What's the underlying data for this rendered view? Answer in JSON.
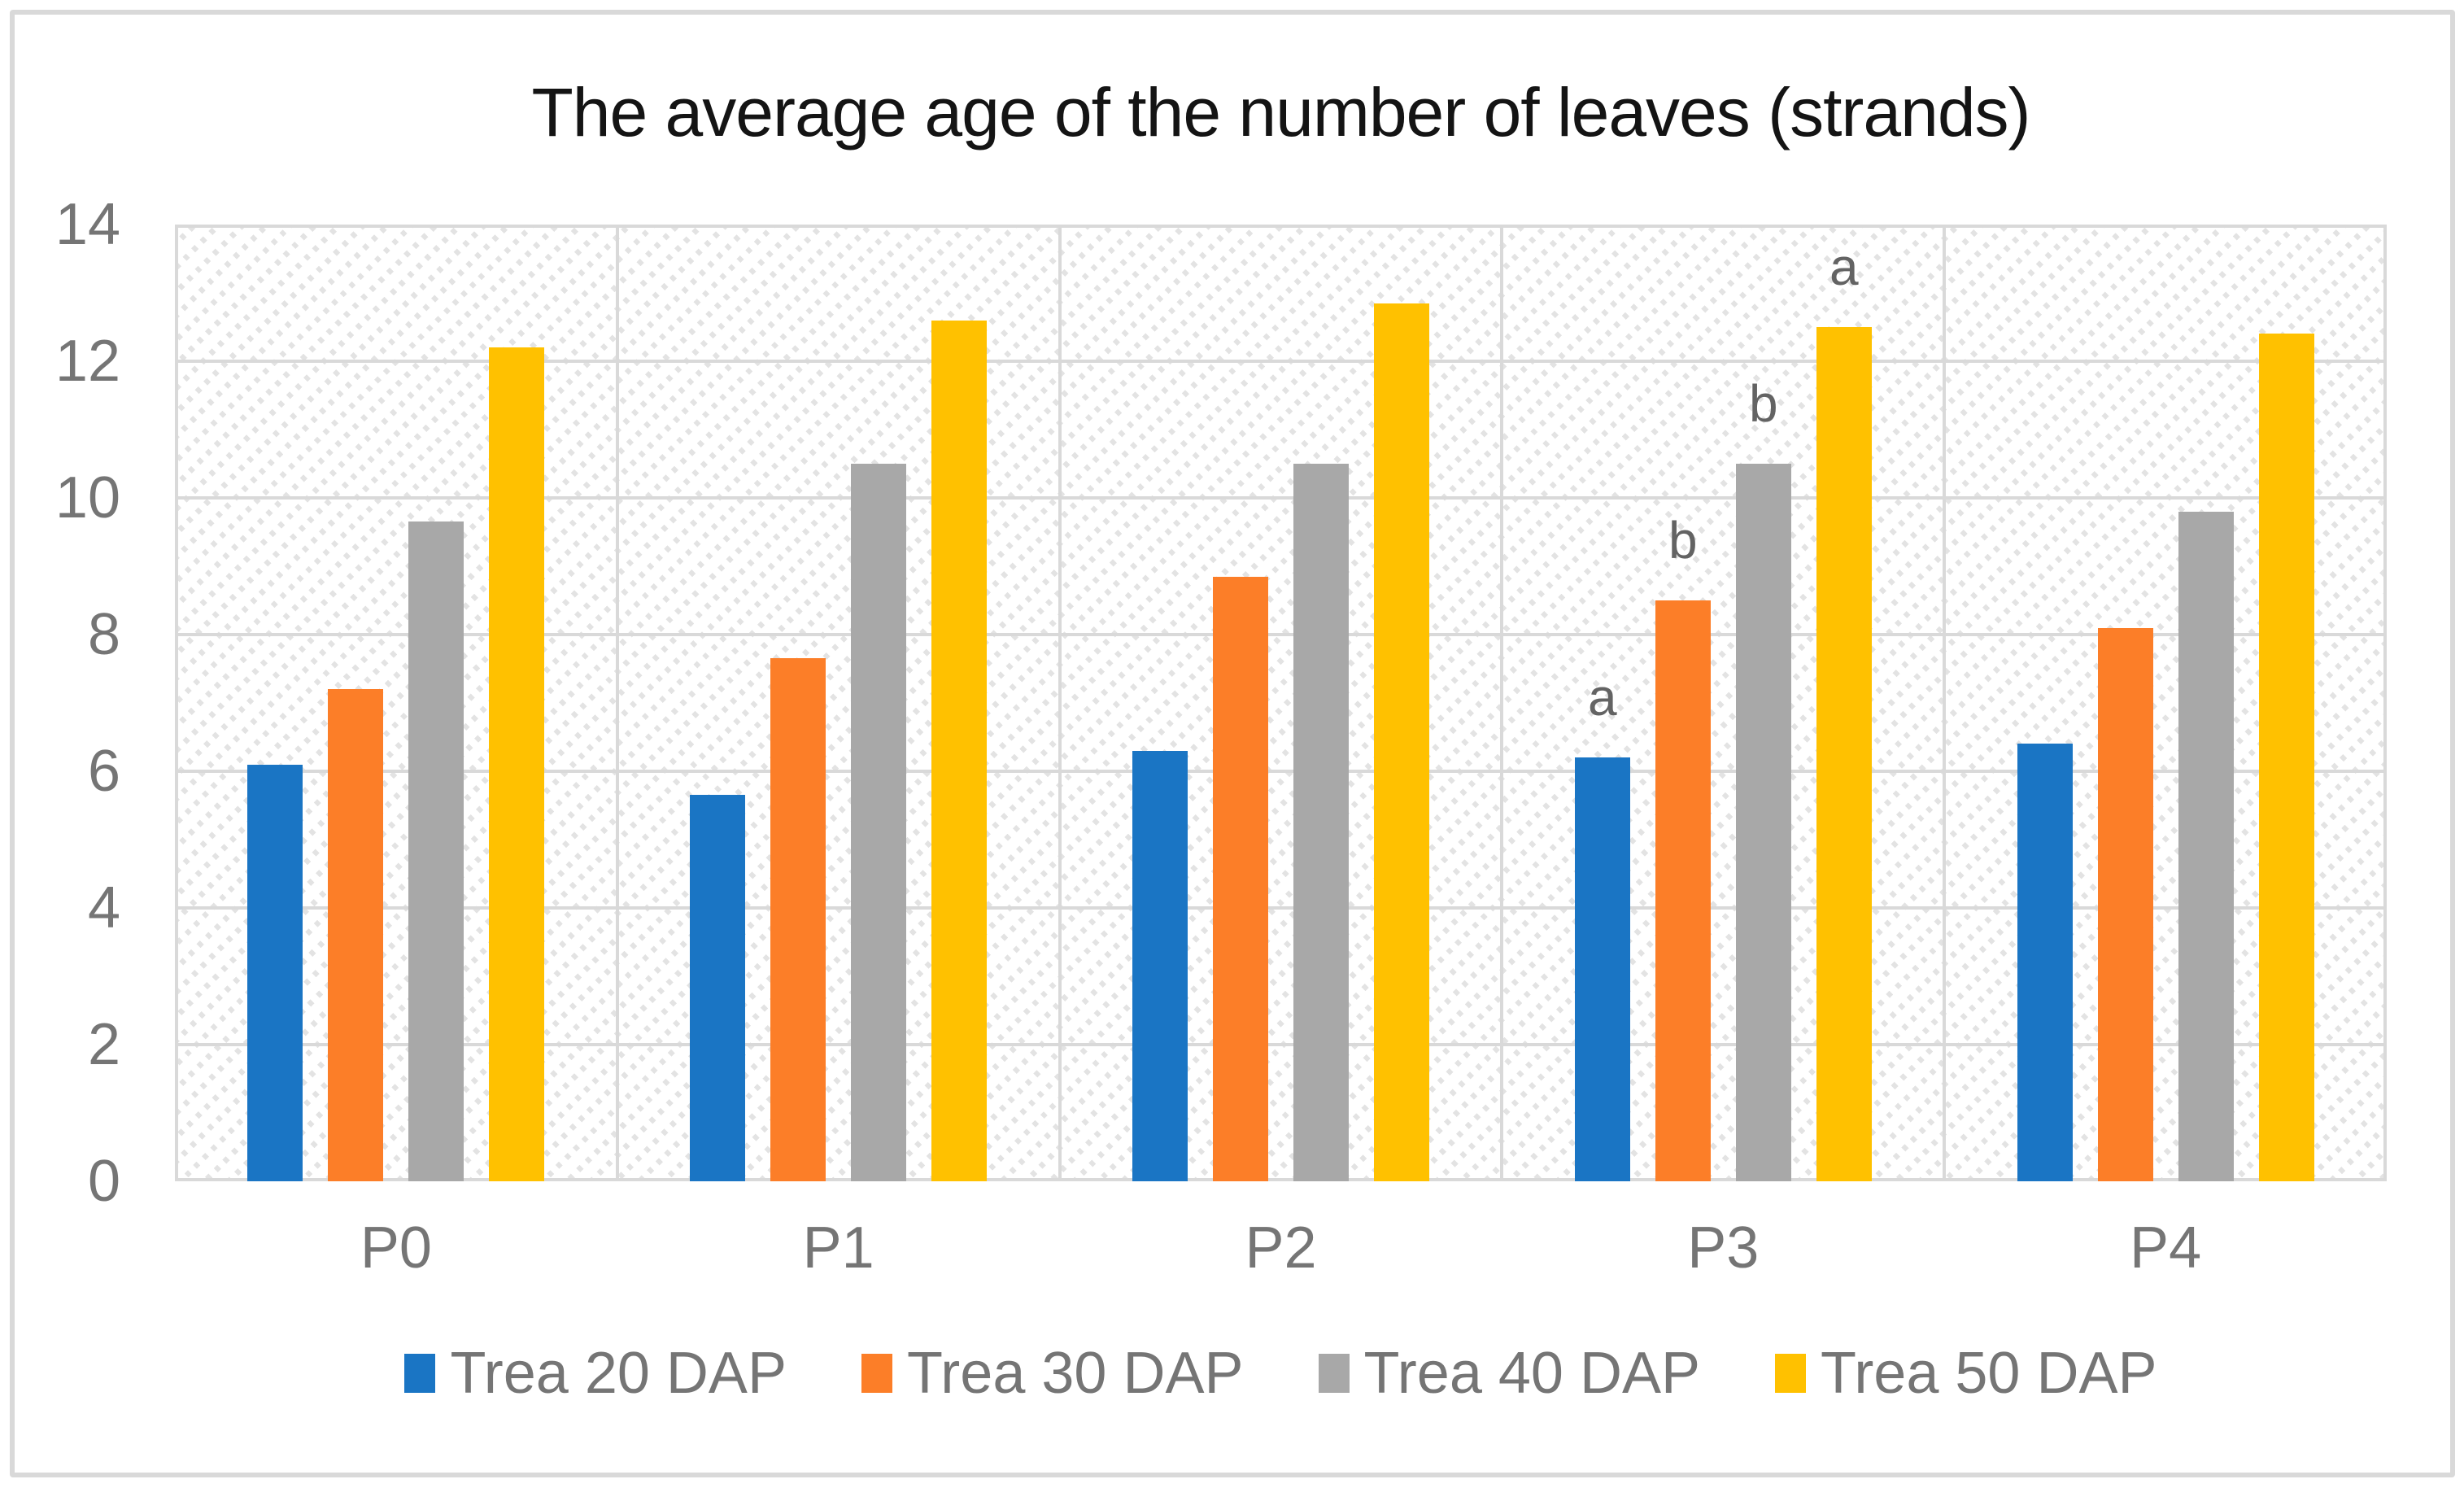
{
  "title": "The average age of the number of leaves (strands)",
  "chart_data": {
    "type": "bar",
    "title": "The average age of the number of leaves (strands)",
    "categories": [
      "P0",
      "P1",
      "P2",
      "P3",
      "P4"
    ],
    "series": [
      {
        "name": "Trea 20 DAP",
        "color": "#1A75C4",
        "values": [
          6.1,
          5.65,
          6.3,
          6.2,
          6.4
        ]
      },
      {
        "name": "Trea 30 DAP",
        "color": "#FC7E28",
        "values": [
          7.2,
          7.65,
          8.85,
          8.5,
          8.1
        ]
      },
      {
        "name": "Trea 40 DAP",
        "color": "#A8A8A8",
        "values": [
          9.65,
          10.5,
          10.5,
          10.5,
          9.8
        ]
      },
      {
        "name": "Trea 50 DAP",
        "color": "#FFC100",
        "values": [
          12.2,
          12.6,
          12.85,
          12.5,
          12.4
        ]
      }
    ],
    "annotations": [
      {
        "category_index": 3,
        "series_index": 0,
        "text": "a"
      },
      {
        "category_index": 3,
        "series_index": 1,
        "text": "b"
      },
      {
        "category_index": 3,
        "series_index": 2,
        "text": "b"
      },
      {
        "category_index": 3,
        "series_index": 3,
        "text": "a"
      }
    ],
    "ylim": [
      0,
      14
    ],
    "yticks": [
      0,
      2,
      4,
      6,
      8,
      10,
      12,
      14
    ],
    "xlabel": "",
    "ylabel": "",
    "grid": true,
    "legend_position": "bottom",
    "plot_background": "diagonal-dotted-hatch"
  },
  "colors": {
    "grid": "#D9D9D9",
    "hatch": "#E3E3E3",
    "axis_text": "#757575",
    "title_text": "#141414",
    "annotation_text": "#636363",
    "frame": "#D9D9D9",
    "background": "#FFFFFF"
  }
}
